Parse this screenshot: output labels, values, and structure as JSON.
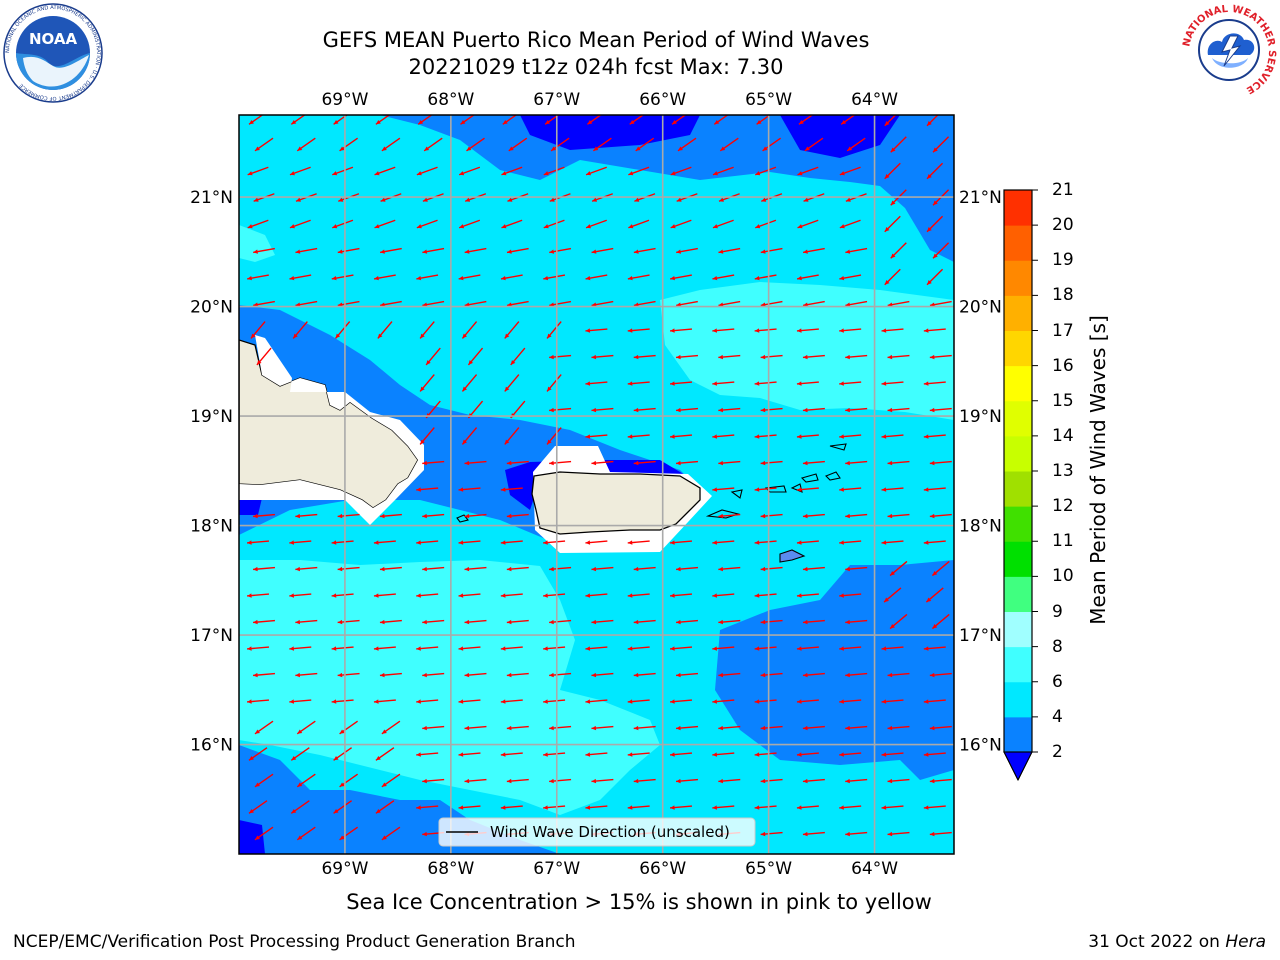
{
  "header": {
    "title_line1": "GEFS MEAN Puerto Rico Mean Period of Wind Waves",
    "title_line2": "20221029 t12z 024h fcst   Max: 7.30"
  },
  "logos": {
    "left": {
      "name": "NOAA",
      "text": "NOAA",
      "ring_text": "NATIONAL OCEANIC AND ATMOSPHERIC ADMINISTRATION · U.S. DEPARTMENT OF COMMERCE"
    },
    "right": {
      "name": "National Weather Service",
      "ring_text": "NATIONAL WEATHER SERVICE"
    }
  },
  "map": {
    "lon_range": [
      -70.0,
      -63.25
    ],
    "lat_range": [
      15.0,
      21.75
    ],
    "top_lon_labels": [
      "69°W",
      "68°W",
      "67°W",
      "66°W",
      "65°W",
      "64°W"
    ],
    "bottom_lon_labels": [
      "69°W",
      "68°W",
      "67°W",
      "66°W",
      "65°W",
      "64°W"
    ],
    "left_lat_labels": [
      "21°N",
      "20°N",
      "19°N",
      "18°N",
      "17°N",
      "16°N"
    ],
    "right_lat_labels": [
      "21°N",
      "20°N",
      "19°N",
      "18°N",
      "17°N",
      "16°N"
    ],
    "land_color": "#efecdc",
    "arrow_color": "#ff0000",
    "legend_text": "Wind Wave Direction (unscaled)"
  },
  "colorbar": {
    "label": "Mean Period of Wind Waves [s]",
    "ticks": [
      "2",
      "4",
      "6",
      "8",
      "9",
      "10",
      "11",
      "12",
      "13",
      "14",
      "15",
      "16",
      "17",
      "18",
      "19",
      "20",
      "21"
    ],
    "colors": [
      "#0a82ff",
      "#00e8ff",
      "#40ffff",
      "#a0ffff",
      "#40ff80",
      "#00e000",
      "#40e000",
      "#a0e000",
      "#c8ff00",
      "#e0ff00",
      "#ffff00",
      "#ffd600",
      "#ffb000",
      "#ff8800",
      "#ff6000",
      "#ff3000"
    ],
    "under_color": "#0000ff"
  },
  "footer": {
    "ice_note": "Sea Ice Concentration > 15% is shown in pink to yellow",
    "left": "NCEP/EMC/Verification Post Processing Product Generation Branch",
    "right_prefix": "31 Oct 2022 on ",
    "right_host": "Hera"
  }
}
